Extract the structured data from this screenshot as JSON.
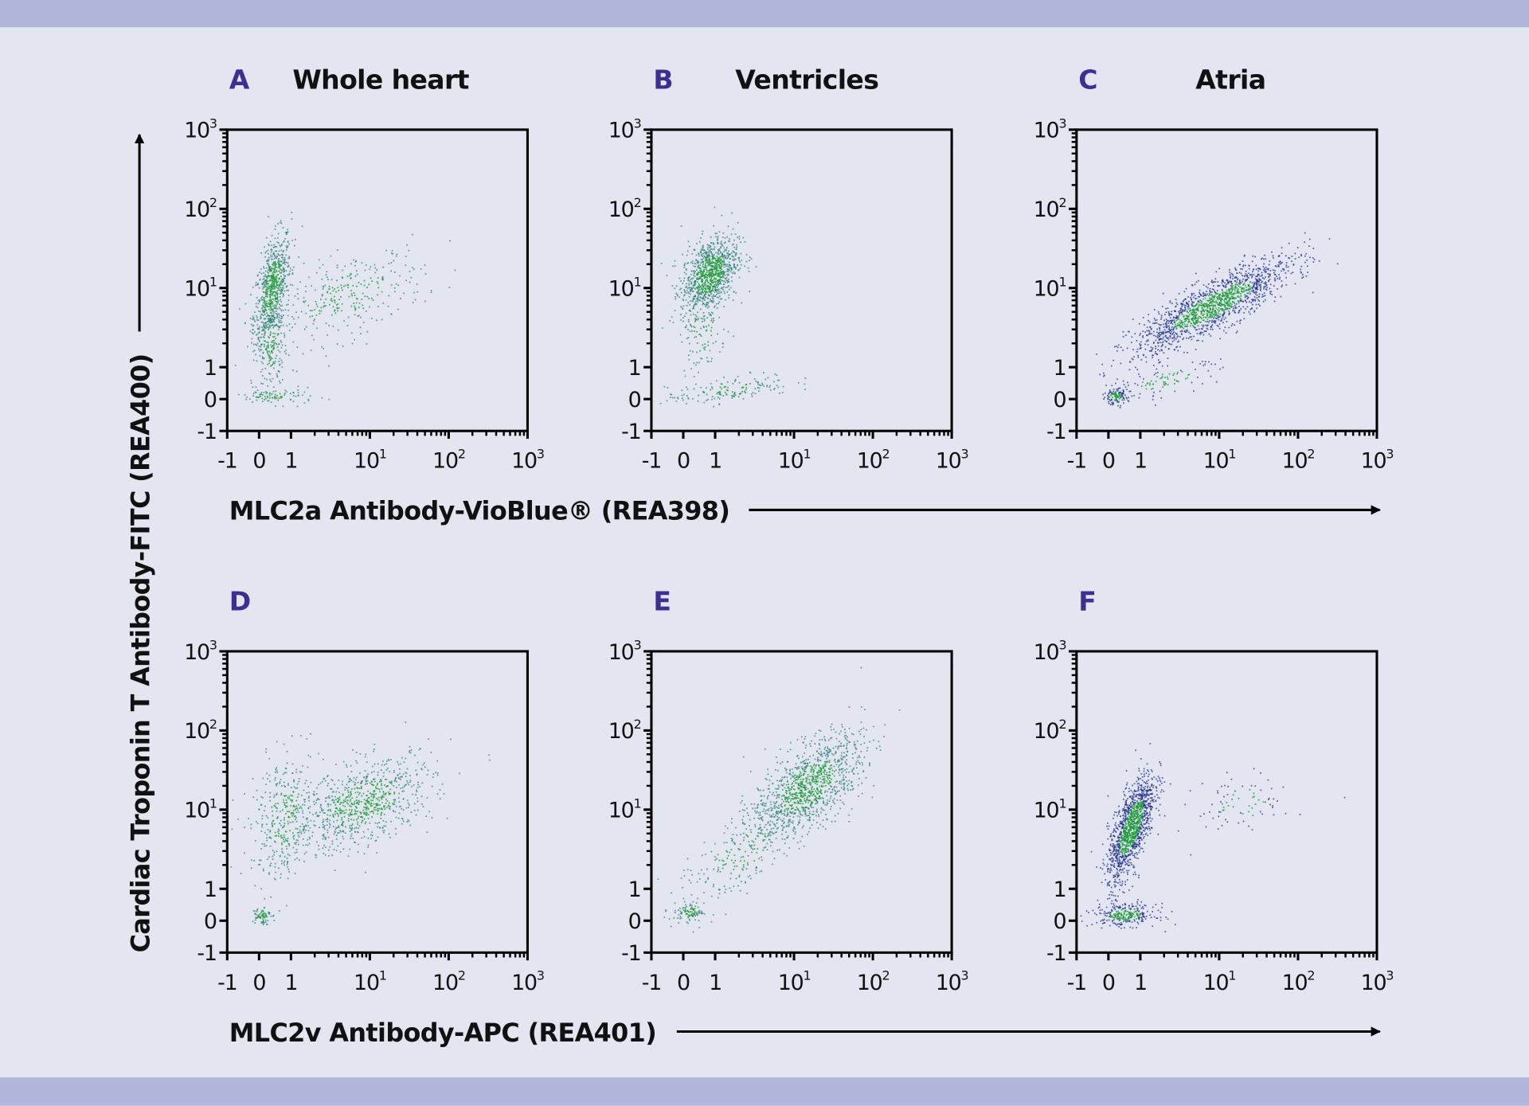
{
  "colors": {
    "background": "#e3e6f1",
    "band": "#b0b7db",
    "panel_letter": "#3b2f93",
    "dense": "#1f9a3a",
    "sparse_teal": "#2a7f72",
    "sparse_blue": "#1c2c8c"
  },
  "y_axis_label": "Cardiac Troponin T Antibody-FITC (REA400)",
  "x_axis_label_top": "MLC2a Antibody-VioBlue® (REA398)",
  "x_axis_label_bottom": "MLC2v Antibody-APC (REA401)",
  "chart_data": [
    {
      "letter": "A",
      "title": "Whole heart",
      "type": "scatter",
      "x_scale": "biexponential",
      "y_scale": "biexponential",
      "xlim": [
        -1,
        1000
      ],
      "ylim": [
        -1,
        1000
      ],
      "x_ticks": [
        "-1",
        "0",
        "1",
        "10^1",
        "10^2",
        "10^3"
      ],
      "y_ticks": [
        "-1",
        "0",
        "1",
        "10^1",
        "10^2",
        "10^3"
      ],
      "sparse_color": "sparse_teal",
      "populations": [
        {
          "x": 0.4,
          "y": 10,
          "spread_decades": [
            0.12,
            0.35
          ],
          "corr": 0.5,
          "events": 700
        },
        {
          "x": 0.35,
          "y": 2,
          "spread_decades": [
            0.1,
            0.3
          ],
          "corr": 0.2,
          "events": 200
        },
        {
          "x": 5,
          "y": 8,
          "spread_decades": [
            0.5,
            0.3
          ],
          "corr": 0.5,
          "events": 300
        },
        {
          "x": 0.5,
          "y": 0.1,
          "spread_decades": [
            0.25,
            0.05
          ],
          "corr": 0,
          "events": 90
        }
      ]
    },
    {
      "letter": "B",
      "title": "Ventricles",
      "type": "scatter",
      "x_scale": "biexponential",
      "y_scale": "biexponential",
      "xlim": [
        -1,
        1000
      ],
      "ylim": [
        -1,
        1000
      ],
      "x_ticks": [
        "-1",
        "0",
        "1",
        "10^1",
        "10^2",
        "10^3"
      ],
      "y_ticks": [
        "-1",
        "0",
        "1",
        "10^1",
        "10^2",
        "10^3"
      ],
      "sparse_color": "sparse_teal",
      "populations": [
        {
          "x": 0.8,
          "y": 15,
          "spread_decades": [
            0.18,
            0.25
          ],
          "corr": 0.4,
          "events": 1000
        },
        {
          "x": 1.5,
          "y": 0.3,
          "spread_decades": [
            0.4,
            0.1
          ],
          "corr": 0.6,
          "events": 150
        },
        {
          "x": 0.6,
          "y": 3,
          "spread_decades": [
            0.15,
            0.3
          ],
          "corr": 0,
          "events": 100
        }
      ]
    },
    {
      "letter": "C",
      "title": "Atria",
      "type": "scatter",
      "x_scale": "biexponential",
      "y_scale": "biexponential",
      "xlim": [
        -1,
        1000
      ],
      "ylim": [
        -1,
        1000
      ],
      "x_ticks": [
        "-1",
        "0",
        "1",
        "10^1",
        "10^2",
        "10^3"
      ],
      "y_ticks": [
        "-1",
        "0",
        "1",
        "10^1",
        "10^2",
        "10^3"
      ],
      "sparse_color": "sparse_blue",
      "populations": [
        {
          "x": 8,
          "y": 6,
          "spread_decades": [
            0.5,
            0.3
          ],
          "corr": 0.85,
          "events": 1500
        },
        {
          "x": 0.2,
          "y": 0.1,
          "spread_decades": [
            0.08,
            0.05
          ],
          "corr": 0,
          "events": 120
        },
        {
          "x": 2,
          "y": 0.6,
          "spread_decades": [
            0.35,
            0.12
          ],
          "corr": 0.7,
          "events": 100
        }
      ]
    },
    {
      "letter": "D",
      "title": "",
      "type": "scatter",
      "x_scale": "biexponential",
      "y_scale": "biexponential",
      "xlim": [
        -1,
        1000
      ],
      "ylim": [
        -1,
        1000
      ],
      "x_ticks": [
        "-1",
        "0",
        "1",
        "10^1",
        "10^2",
        "10^3"
      ],
      "y_ticks": [
        "-1",
        "0",
        "1",
        "10^1",
        "10^2",
        "10^3"
      ],
      "sparse_color": "sparse_teal",
      "populations": [
        {
          "x": 8,
          "y": 12,
          "spread_decades": [
            0.45,
            0.3
          ],
          "corr": 0.5,
          "events": 800
        },
        {
          "x": 0.8,
          "y": 8,
          "spread_decades": [
            0.22,
            0.4
          ],
          "corr": 0.2,
          "events": 350
        },
        {
          "x": 0.05,
          "y": 0.2,
          "spread_decades": [
            0.06,
            0.06
          ],
          "corr": 0,
          "events": 70
        }
      ]
    },
    {
      "letter": "E",
      "title": "",
      "type": "scatter",
      "x_scale": "biexponential",
      "y_scale": "biexponential",
      "xlim": [
        -1,
        1000
      ],
      "ylim": [
        -1,
        1000
      ],
      "x_ticks": [
        "-1",
        "0",
        "1",
        "10^1",
        "10^2",
        "10^3"
      ],
      "y_ticks": [
        "-1",
        "0",
        "1",
        "10^1",
        "10^2",
        "10^3"
      ],
      "sparse_color": "sparse_teal",
      "populations": [
        {
          "x": 15,
          "y": 20,
          "spread_decades": [
            0.35,
            0.33
          ],
          "corr": 0.6,
          "events": 1100
        },
        {
          "x": 2,
          "y": 2.5,
          "spread_decades": [
            0.4,
            0.4
          ],
          "corr": 0.7,
          "events": 250
        },
        {
          "x": 0.2,
          "y": 0.3,
          "spread_decades": [
            0.08,
            0.06
          ],
          "corr": 0,
          "events": 90
        }
      ]
    },
    {
      "letter": "F",
      "title": "",
      "type": "scatter",
      "x_scale": "biexponential",
      "y_scale": "biexponential",
      "xlim": [
        -1,
        1000
      ],
      "ylim": [
        -1,
        1000
      ],
      "x_ticks": [
        "-1",
        "0",
        "1",
        "10^1",
        "10^2",
        "10^3"
      ],
      "y_ticks": [
        "-1",
        "0",
        "1",
        "10^1",
        "10^2",
        "10^3"
      ],
      "sparse_color": "sparse_blue",
      "populations": [
        {
          "x": 0.7,
          "y": 6,
          "spread_decades": [
            0.15,
            0.35
          ],
          "corr": 0.7,
          "events": 1300
        },
        {
          "x": 0.5,
          "y": 0.2,
          "spread_decades": [
            0.2,
            0.07
          ],
          "corr": 0,
          "events": 280
        },
        {
          "x": 20,
          "y": 12,
          "spread_decades": [
            0.3,
            0.2
          ],
          "corr": 0.3,
          "events": 80
        }
      ]
    }
  ]
}
